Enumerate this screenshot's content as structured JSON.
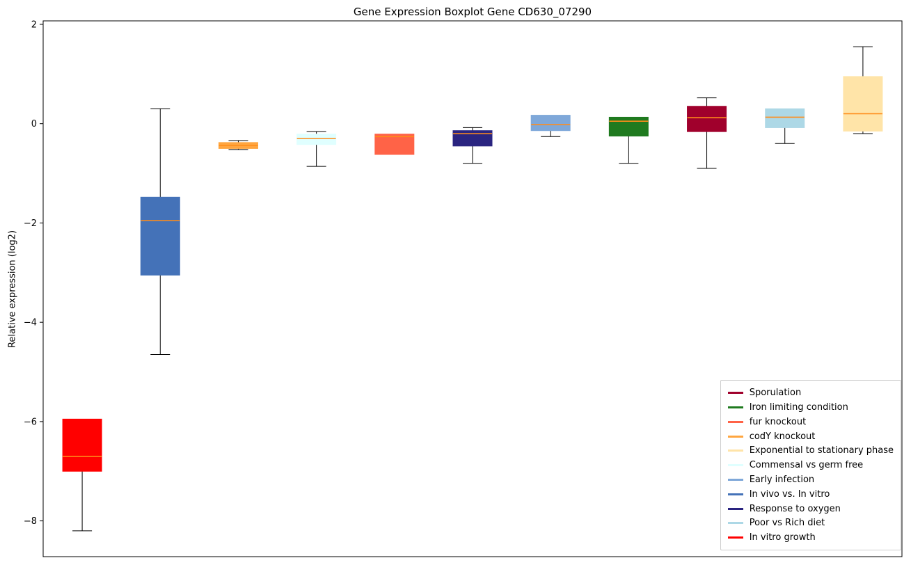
{
  "title": "Gene Expression Boxplot Gene CD630_07290",
  "ylabel": "Relative expression (log2)",
  "chart_data": {
    "type": "boxplot",
    "title": "Gene Expression Boxplot Gene CD630_07290",
    "ylabel": "Relative expression (log2)",
    "xlabel": "",
    "ylim": [
      -8.72,
      2.07
    ],
    "yticks": [
      2,
      0,
      -2,
      -4,
      -6,
      -8
    ],
    "grid": false,
    "median_color": "#ff8c1a",
    "legend_position": "lower right",
    "boxes": [
      {
        "name": "In vitro growth",
        "color": "#ff0000",
        "low": -8.2,
        "q1": -7.0,
        "median": -6.7,
        "q3": -5.95,
        "high": -5.95
      },
      {
        "name": "In vivo vs. In vitro",
        "color": "#4472b8",
        "low": -4.65,
        "q1": -3.05,
        "median": -1.95,
        "q3": -1.48,
        "high": 0.3
      },
      {
        "name": "codY knockout",
        "color": "#ffa640",
        "low": -0.52,
        "q1": -0.5,
        "median": -0.44,
        "q3": -0.38,
        "high": -0.34
      },
      {
        "name": "Commensal vs germ free",
        "color": "#e0ffff",
        "low": -0.86,
        "q1": -0.42,
        "median": -0.3,
        "q3": -0.21,
        "high": -0.16
      },
      {
        "name": "fur knockout",
        "color": "#ff6347",
        "low": -0.62,
        "q1": -0.62,
        "median": -0.26,
        "q3": -0.21,
        "high": -0.21
      },
      {
        "name": "Response to oxygen",
        "color": "#2a2480",
        "low": -0.8,
        "q1": -0.45,
        "median": -0.2,
        "q3": -0.14,
        "high": -0.08
      },
      {
        "name": "Early infection",
        "color": "#7fa8d9",
        "low": -0.26,
        "q1": -0.14,
        "median": -0.02,
        "q3": 0.17,
        "high": 0.17
      },
      {
        "name": "Iron limiting condition",
        "color": "#1f7a1f",
        "low": -0.8,
        "q1": -0.25,
        "median": 0.05,
        "q3": 0.13,
        "high": 0.13
      },
      {
        "name": "Sporulation",
        "color": "#a0002c",
        "low": -0.9,
        "q1": -0.16,
        "median": 0.12,
        "q3": 0.35,
        "high": 0.52
      },
      {
        "name": "Poor vs Rich diet",
        "color": "#add8e6",
        "low": -0.4,
        "q1": -0.08,
        "median": 0.13,
        "q3": 0.3,
        "high": 0.3
      },
      {
        "name": "Exponential to stationary phase",
        "color": "#ffe4a8",
        "low": -0.2,
        "q1": -0.15,
        "median": 0.2,
        "q3": 0.95,
        "high": 1.55
      }
    ],
    "legend": [
      {
        "label": "Sporulation",
        "color": "#a0002c"
      },
      {
        "label": "Iron limiting condition",
        "color": "#1f7a1f"
      },
      {
        "label": "fur knockout",
        "color": "#ff6347"
      },
      {
        "label": "codY knockout",
        "color": "#ffa640"
      },
      {
        "label": "Exponential to stationary phase",
        "color": "#ffe4a8"
      },
      {
        "label": "Commensal vs germ free",
        "color": "#e0ffff"
      },
      {
        "label": "Early infection",
        "color": "#7fa8d9"
      },
      {
        "label": "In vivo vs. In vitro",
        "color": "#4472b8"
      },
      {
        "label": "Response to oxygen",
        "color": "#2a2480"
      },
      {
        "label": "Poor vs Rich diet",
        "color": "#add8e6"
      },
      {
        "label": "In vitro growth",
        "color": "#ff0000"
      }
    ]
  }
}
